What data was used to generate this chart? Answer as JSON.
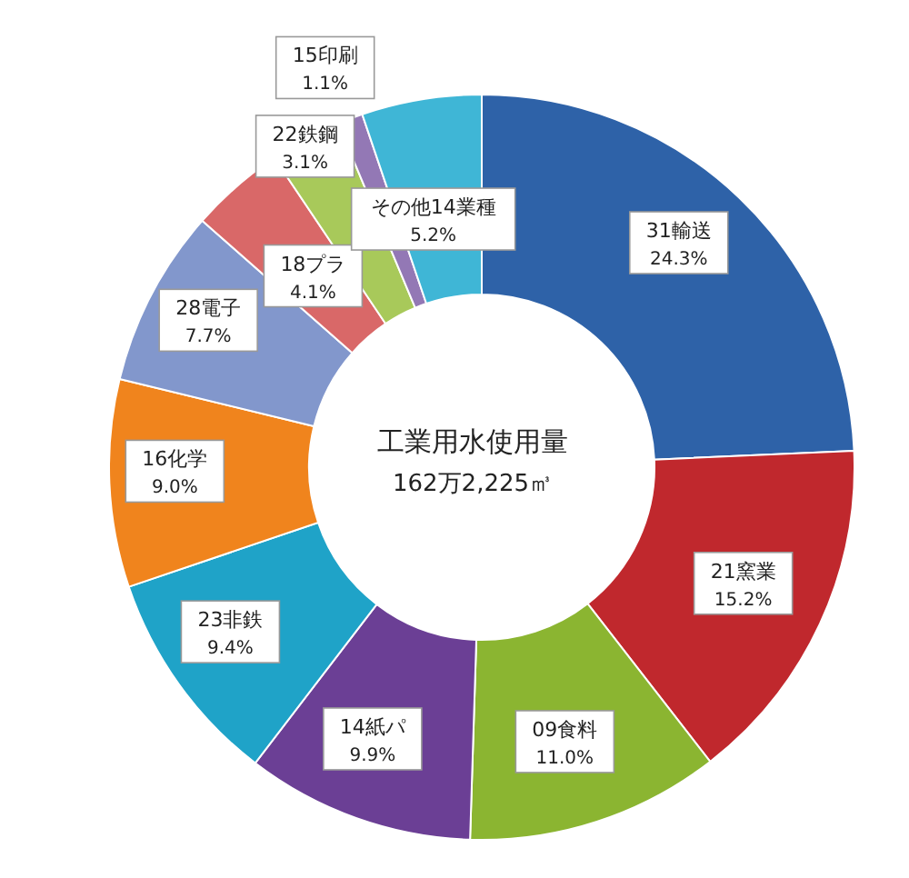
{
  "chart_data": {
    "type": "donut",
    "title": "工業用水使用量",
    "subtitle": "162万2,225㎥",
    "categories": [
      "31輸送",
      "21窯業",
      "09食料",
      "14紙パ",
      "23非鉄",
      "16化学",
      "28電子",
      "18プラ",
      "22鉄鋼",
      "15印刷",
      "その他14業種"
    ],
    "values": [
      24.3,
      15.2,
      11.0,
      9.9,
      9.4,
      9.0,
      7.7,
      4.1,
      3.1,
      1.1,
      5.2
    ],
    "value_labels": [
      "24.3%",
      "15.2%",
      "11.0%",
      "9.9%",
      "9.4%",
      "9.0%",
      "7.7%",
      "4.1%",
      "3.1%",
      "1.1%",
      "5.2%"
    ],
    "colors": [
      "#2e62a8",
      "#c0282d",
      "#8bb531",
      "#6b3f95",
      "#1fa3c8",
      "#f0841d",
      "#8297cc",
      "#d96868",
      "#a8c95a",
      "#9378b5",
      "#3fb6d6"
    ],
    "legend": false
  }
}
